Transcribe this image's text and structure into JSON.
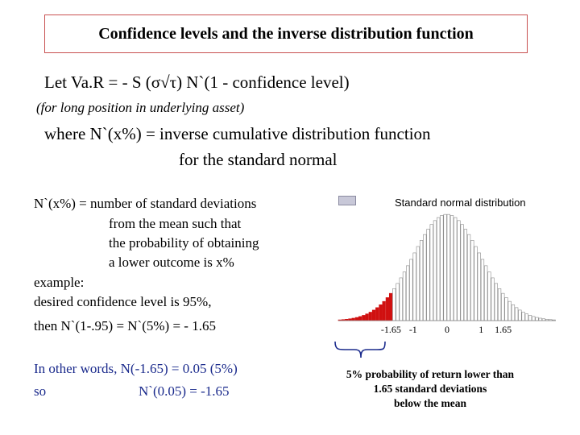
{
  "slide": {
    "title": "Confidence levels and the inverse distribution function",
    "formula": "Let Va.R =   - S (σ√τ) N`(1 - confidence level)",
    "note": "(for long position in underlying asset)",
    "where_line1": "where N`(x%) = inverse cumulative distribution function",
    "where_line2": "for the standard normal",
    "definition": {
      "line1": "N`(x%)  =  number of standard deviations",
      "line2": "from the mean such that",
      "line3": "the probability of obtaining",
      "line4": "a lower outcome is x%"
    },
    "example": {
      "line1": "example:",
      "line2": "desired confidence level is 95%,",
      "line3": "then N`(1-.95) = N`(5%) =  - 1.65"
    },
    "other_words": {
      "line1": "In other words, N(-1.65)  =     0.05  (5%)",
      "line2_left": "so",
      "line2_right": "N`(0.05)  =  -1.65"
    }
  },
  "chart_data": {
    "type": "bar",
    "title": "Standard normal distribution",
    "x_ticks": [
      "-1.65",
      "-1",
      "0",
      "1",
      "1.65"
    ],
    "x_tick_values": [
      -1.65,
      -1,
      0,
      1,
      1.65
    ],
    "xlim": [
      -3.2,
      3.2
    ],
    "bar_width": 0.1,
    "highlight_below": -1.65,
    "highlight_color": "#d01010",
    "bar_color": "#ffffff",
    "bar_edge_color": "#8a8a8a",
    "caption_lines": [
      "5% probability of return lower than",
      "1.65 standard deviations",
      "below the mean"
    ]
  },
  "colors": {
    "title_border": "#c85050",
    "blue_text": "#1a2a8c"
  }
}
